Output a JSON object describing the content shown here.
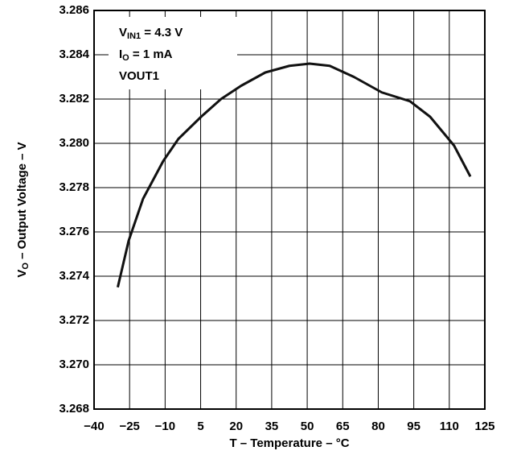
{
  "chart_data": {
    "type": "line",
    "x_label": "T – Temperature – °C",
    "y_label": {
      "main": "V",
      "sub": "O",
      "rest": " – Output Voltage – V"
    },
    "annotations": [
      {
        "main": "V",
        "sub": "IN1",
        "rest": " = 4.3 V"
      },
      {
        "main": "I",
        "sub": "O",
        "rest": " = 1 mA"
      },
      {
        "main": "VOUT1"
      }
    ],
    "x": [
      -30,
      -25.4,
      -19.3,
      -10.8,
      -4.4,
      5.2,
      13.6,
      22.1,
      32.3,
      42.5,
      51,
      59.5,
      69.7,
      81.5,
      93.4,
      101.9,
      112,
      118.9
    ],
    "series": [
      {
        "color": "#111111",
        "values": [
          3.2735,
          3.2756,
          3.2775,
          3.2792,
          3.2802,
          3.2812,
          3.282,
          3.2826,
          3.2832,
          3.2835,
          3.2836,
          3.2835,
          3.283,
          3.2823,
          3.2819,
          3.2812,
          3.2799,
          3.2785
        ]
      }
    ],
    "xlim": [
      -40,
      125
    ],
    "xticks": [
      {
        "value": -40,
        "label": "−40"
      },
      {
        "value": -25,
        "label": "−25"
      },
      {
        "value": -10,
        "label": "−10"
      },
      5,
      20,
      35,
      50,
      65,
      80,
      95,
      110,
      125
    ],
    "ylim": [
      3.268,
      3.286
    ],
    "yticks": [
      {
        "value": 3.268,
        "label": "3.268"
      },
      {
        "value": 3.27,
        "label": "3.270"
      },
      {
        "value": 3.272,
        "label": "3.272"
      },
      {
        "value": 3.274,
        "label": "3.274"
      },
      {
        "value": 3.276,
        "label": "3.276"
      },
      {
        "value": 3.278,
        "label": "3.278"
      },
      {
        "value": 3.28,
        "label": "3.280"
      },
      {
        "value": 3.282,
        "label": "3.282"
      },
      {
        "value": 3.284,
        "label": "3.284"
      },
      {
        "value": 3.286,
        "label": "3.286"
      }
    ],
    "grid": true
  }
}
